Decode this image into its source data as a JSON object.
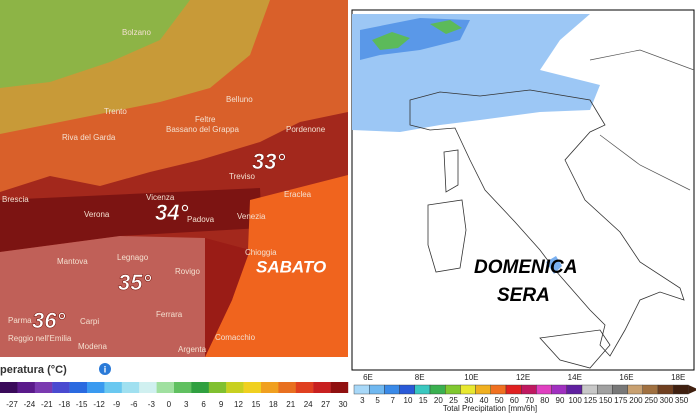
{
  "left_panel": {
    "cities": [
      "Bolzano",
      "Trento",
      "Belluno",
      "Feltre",
      "Pordenone",
      "Riva del Garda",
      "Bassano del Grappa",
      "Treviso",
      "Eraclea",
      "Vicenza",
      "Padova",
      "Venezia",
      "Verona",
      "Brescia",
      "Legnago",
      "Rovigo",
      "Chioggia",
      "Mantova",
      "Parma",
      "Carpi",
      "Ferrara",
      "Reggio nell'Emilia",
      "Modena",
      "Comacchio",
      "Argenta"
    ],
    "temperature_labels": [
      "33°",
      "34°",
      "35°",
      "36°"
    ],
    "day_label": "SABATO",
    "legend": {
      "title": "peratura (°C)",
      "info_icon": "i",
      "ticks": [
        -27,
        -24,
        -21,
        -18,
        -15,
        -12,
        -9,
        -6,
        -3,
        0,
        3,
        6,
        9,
        12,
        15,
        18,
        21,
        24,
        27,
        30
      ]
    }
  },
  "right_panel": {
    "day_label": [
      "DOMENICA",
      "SERA"
    ],
    "longitude_labels": [
      "6E",
      "8E",
      "10E",
      "12E",
      "14E",
      "16E",
      "18E"
    ],
    "legend": {
      "ticks": [
        3,
        5,
        7,
        10,
        15,
        20,
        25,
        30,
        40,
        50,
        60,
        70,
        80,
        90,
        100,
        125,
        150,
        175,
        200,
        250,
        300,
        350
      ],
      "title": "Total Precipitation [mm/6h]"
    }
  }
}
